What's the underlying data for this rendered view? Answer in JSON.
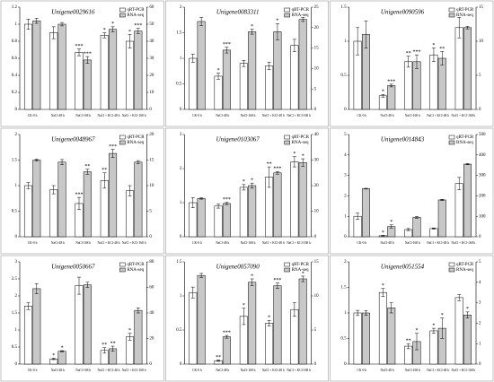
{
  "chart_data": [
    {
      "type": "bar",
      "title": "Unigene0029616",
      "categories": [
        "CK-0 h",
        "NaCl-48 h",
        "NaCl-168 h",
        "NaCl + KCl-48 h",
        "NaCl + KCl-168 h"
      ],
      "ylim": [
        0,
        1.2
      ],
      "yticks": [
        0,
        0.2,
        0.4,
        0.6,
        0.8,
        1,
        1.2
      ],
      "y2lim": [
        0,
        60
      ],
      "y2ticks": [
        0,
        10,
        20,
        30,
        40,
        50,
        60
      ],
      "series": [
        {
          "name": "qRT-PCR",
          "color": "#ffffff",
          "values": [
            1.0,
            0.9,
            0.67,
            0.87,
            0.8
          ],
          "errors": [
            0.06,
            0.07,
            0.04,
            0.03,
            0.08
          ],
          "annotations": [
            null,
            null,
            "***",
            "*",
            "*"
          ]
        },
        {
          "name": "RNA-seq",
          "color": "#c8c8c8",
          "axis": "y2",
          "values": [
            52,
            50,
            29,
            47,
            46
          ],
          "errors": [
            1.5,
            1,
            2,
            1.5,
            1.5
          ],
          "annotations": [
            null,
            null,
            "***",
            "*",
            "***"
          ]
        }
      ]
    },
    {
      "type": "bar",
      "title": "Unigene0083311",
      "categories": [
        "CK-0 h",
        "NaCl-48 h",
        "NaCl-168 h",
        "NaCl + KCl-48 h",
        "NaCl + KCl-168 h"
      ],
      "ylim": [
        0,
        2
      ],
      "yticks": [
        0,
        0.5,
        1,
        1.5,
        2
      ],
      "y2lim": [
        0,
        25
      ],
      "y2ticks": [
        0,
        5,
        10,
        15,
        20,
        25
      ],
      "series": [
        {
          "name": "qRT-PCR",
          "color": "#ffffff",
          "values": [
            1.0,
            0.65,
            0.9,
            0.85,
            1.25
          ],
          "errors": [
            0.08,
            0.06,
            0.06,
            0.07,
            0.12
          ],
          "annotations": [
            null,
            "*",
            null,
            null,
            null
          ]
        },
        {
          "name": "RNA-seq",
          "color": "#c8c8c8",
          "axis": "y2",
          "values": [
            21.5,
            14.5,
            19,
            19,
            22
          ],
          "errors": [
            1,
            0.7,
            0.6,
            2,
            0.5
          ],
          "annotations": [
            null,
            "***",
            "*",
            "*",
            null
          ]
        }
      ]
    },
    {
      "type": "bar",
      "title": "Unigene0090596",
      "categories": [
        "CK-0 h",
        "NaCl-48 h",
        "NaCl-168 h",
        "NaCl + KCl-48 h",
        "NaCl + KCl-168 h"
      ],
      "ylim": [
        0,
        1.5
      ],
      "yticks": [
        0,
        0.5,
        1,
        1.5
      ],
      "y2lim": [
        0,
        15
      ],
      "y2ticks": [
        0,
        5,
        10,
        15
      ],
      "series": [
        {
          "name": "qRT-PCR",
          "color": "#ffffff",
          "values": [
            1.0,
            0.2,
            0.7,
            0.8,
            1.2
          ],
          "errors": [
            0.2,
            0.02,
            0.08,
            0.1,
            0.15
          ],
          "annotations": [
            null,
            "*",
            "**",
            "*",
            null
          ]
        },
        {
          "name": "RNA-seq",
          "color": "#c8c8c8",
          "axis": "y2",
          "values": [
            11,
            3.5,
            7,
            7.5,
            12
          ],
          "errors": [
            2,
            0.2,
            1,
            1,
            0.2
          ],
          "annotations": [
            null,
            "***",
            "***",
            "**",
            null
          ]
        }
      ]
    },
    {
      "type": "bar",
      "title": "Unigene0048967",
      "categories": [
        "CK-0 h",
        "NaCl-48 h",
        "NaCl-168 h",
        "NaCl + KCl-48 h",
        "NaCl + KCl-168 h"
      ],
      "ylim": [
        0,
        2
      ],
      "yticks": [
        0,
        0.5,
        1,
        1.5,
        2
      ],
      "y2lim": [
        0,
        20
      ],
      "y2ticks": [
        0,
        5,
        10,
        15,
        20
      ],
      "series": [
        {
          "name": "qRT-PCR",
          "color": "#ffffff",
          "values": [
            1.0,
            0.92,
            0.65,
            1.1,
            0.9
          ],
          "errors": [
            0.06,
            0.08,
            0.12,
            0.15,
            0.1
          ],
          "annotations": [
            null,
            null,
            "***",
            "**",
            null
          ]
        },
        {
          "name": "RNA-seq",
          "color": "#c8c8c8",
          "axis": "y2",
          "values": [
            15,
            14.6,
            12.7,
            16.3,
            14.6
          ],
          "errors": [
            0.2,
            0.5,
            0.5,
            0.8,
            0.3
          ],
          "annotations": [
            null,
            null,
            "**",
            "***",
            null
          ]
        }
      ]
    },
    {
      "type": "bar",
      "title": "Unigene0103067",
      "categories": [
        "CK-0 h",
        "NaCl-48 h",
        "NaCl-168 h",
        "NaCl + KCl-48 h",
        "NaCl + KCl-168 h"
      ],
      "ylim": [
        0,
        3
      ],
      "yticks": [
        0,
        1,
        2,
        3
      ],
      "y2lim": [
        0,
        40
      ],
      "y2ticks": [
        0,
        10,
        20,
        30,
        40
      ],
      "series": [
        {
          "name": "qRT-PCR",
          "color": "#ffffff",
          "values": [
            1.0,
            0.9,
            1.45,
            1.75,
            2.2
          ],
          "errors": [
            0.15,
            0.06,
            0.08,
            0.3,
            0.15
          ],
          "annotations": [
            null,
            null,
            "*",
            "**",
            "*"
          ]
        },
        {
          "name": "RNA-seq",
          "color": "#c8c8c8",
          "axis": "y2",
          "values": [
            15,
            13,
            20,
            25,
            29
          ],
          "errors": [
            0.3,
            0.4,
            1,
            0.5,
            1.5
          ],
          "annotations": [
            null,
            "***",
            "*",
            "***",
            "*"
          ]
        }
      ]
    },
    {
      "type": "bar",
      "title": "Unigene0014843",
      "categories": [
        "CK-0 h",
        "NaCl-48 h",
        "NaCl-168 h",
        "NaCl + KCl-48 h",
        "NaCl + KCl-168 h"
      ],
      "ylim": [
        0,
        5
      ],
      "yticks": [
        0,
        1,
        2,
        3,
        4,
        5
      ],
      "y2lim": [
        0,
        500
      ],
      "y2ticks": [
        0,
        100,
        200,
        300,
        400,
        500
      ],
      "series": [
        {
          "name": "qRT-PCR",
          "color": "#ffffff",
          "values": [
            1.0,
            0.05,
            0.35,
            0.4,
            2.6
          ],
          "errors": [
            0.15,
            0.02,
            0.05,
            0.03,
            0.3
          ],
          "annotations": [
            null,
            "*",
            null,
            null,
            null
          ]
        },
        {
          "name": "RNA-seq",
          "color": "#c8c8c8",
          "axis": "y2",
          "values": [
            235,
            50,
            95,
            180,
            355
          ],
          "errors": [
            2,
            8,
            4,
            3,
            3
          ],
          "annotations": [
            null,
            "*",
            null,
            null,
            null
          ]
        }
      ]
    },
    {
      "type": "bar",
      "title": "Unigene0050667",
      "categories": [
        "CK-0 h",
        "NaCl-48 h",
        "NaCl-168 h",
        "NaCl + KCl-48 h",
        "NaCl + KCl-168 h"
      ],
      "ylim": [
        0,
        3
      ],
      "yticks": [
        0,
        0.5,
        1,
        1.5,
        2,
        2.5,
        3
      ],
      "y2lim": [
        0,
        80
      ],
      "y2ticks": [
        0,
        20,
        40,
        60,
        80
      ],
      "series": [
        {
          "name": "qRT-PCR",
          "color": "#ffffff",
          "values": [
            1.7,
            0.15,
            2.3,
            0.4,
            0.8
          ],
          "errors": [
            0.1,
            0.02,
            0.25,
            0.08,
            0.1
          ],
          "annotations": [
            null,
            "*",
            null,
            "**",
            "*"
          ]
        },
        {
          "name": "RNA-seq",
          "color": "#c8c8c8",
          "axis": "y2",
          "values": [
            59,
            10,
            62,
            12,
            42
          ],
          "errors": [
            4,
            0.5,
            2,
            2,
            2
          ],
          "annotations": [
            null,
            "*",
            null,
            "**",
            null
          ]
        }
      ]
    },
    {
      "type": "bar",
      "title": "Unigene0057090",
      "categories": [
        "CK-0 h",
        "NaCl-48 h",
        "NaCl-168 h",
        "NaCl + KCl-48 h",
        "NaCl + KCl-168 h"
      ],
      "ylim": [
        0,
        1.5
      ],
      "yticks": [
        0,
        0.5,
        1,
        1.5
      ],
      "y2lim": [
        0,
        15
      ],
      "y2ticks": [
        0,
        5,
        10,
        15
      ],
      "series": [
        {
          "name": "qRT-PCR",
          "color": "#ffffff",
          "values": [
            1.05,
            0.05,
            0.7,
            0.6,
            0.8
          ],
          "errors": [
            0.08,
            0.01,
            0.12,
            0.04,
            0.1
          ],
          "annotations": [
            null,
            "**",
            "*",
            "*",
            null
          ]
        },
        {
          "name": "RNA-seq",
          "color": "#c8c8c8",
          "axis": "y2",
          "values": [
            13,
            4,
            12,
            11.5,
            12.5
          ],
          "errors": [
            0.3,
            0.2,
            0.5,
            0.4,
            0.4
          ],
          "annotations": [
            null,
            "***",
            "*",
            "***",
            "*"
          ]
        }
      ]
    },
    {
      "type": "bar",
      "title": "Unigene0051554",
      "categories": [
        "CK-0 h",
        "NaCl-48 h",
        "NaCl-168 h",
        "NaCl + KCl-48 h",
        "NaCl + KCl-168 h"
      ],
      "ylim": [
        0,
        2
      ],
      "yticks": [
        0,
        0.5,
        1,
        1.5,
        2
      ],
      "y2lim": [
        0,
        5
      ],
      "y2ticks": [
        0,
        1,
        2,
        3,
        4,
        5
      ],
      "series": [
        {
          "name": "qRT-PCR",
          "color": "#ffffff",
          "values": [
            1.0,
            1.4,
            0.35,
            0.65,
            1.3
          ],
          "errors": [
            0.05,
            0.08,
            0.05,
            0.05,
            0.06
          ],
          "annotations": [
            null,
            "*",
            "**",
            "*",
            null
          ]
        },
        {
          "name": "RNA-seq",
          "color": "#c8c8c8",
          "axis": "y2",
          "values": [
            2.5,
            2.75,
            1.1,
            1.75,
            2.4
          ],
          "errors": [
            0.12,
            0.25,
            0.4,
            0.5,
            0.15
          ],
          "annotations": [
            null,
            null,
            "*",
            "*",
            "*"
          ]
        }
      ]
    }
  ]
}
